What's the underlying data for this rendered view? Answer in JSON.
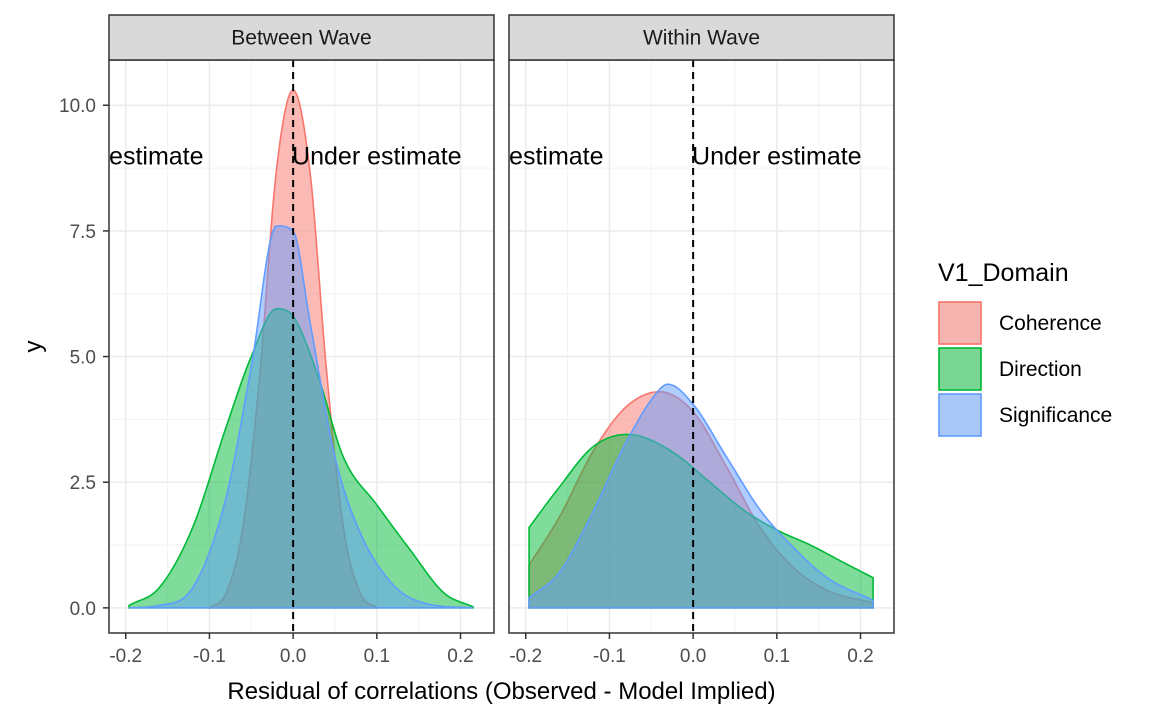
{
  "chart_data": {
    "type": "area",
    "xlabel": "Residual of correlations (Observed - Model Implied)",
    "ylabel": "y",
    "xlim": [
      -0.22,
      0.24
    ],
    "ylim": [
      -0.5,
      10.9
    ],
    "x_ticks": [
      -0.2,
      -0.1,
      0.0,
      0.1,
      0.2
    ],
    "x_tick_labels": [
      "-0.2",
      "-0.1",
      "0.0",
      "0.1",
      "0.2"
    ],
    "y_ticks": [
      0,
      2.5,
      5,
      7.5,
      10
    ],
    "y_tick_labels": [
      "0.0",
      "2.5",
      "5.0",
      "7.5",
      "10.0"
    ],
    "grid": true,
    "legend": {
      "title": "V1_Domain",
      "placement": "right",
      "entries": [
        "Coherence",
        "Direction",
        "Significance"
      ]
    },
    "reference_line": {
      "x": 0,
      "style": "dashed"
    },
    "colors": {
      "Coherence": "#F8766D",
      "Direction": "#00BA38",
      "Significance": "#619CFF"
    },
    "facets": [
      {
        "strip": "Between Wave",
        "annotations": [
          {
            "text": "Over estimate",
            "x": -0.2,
            "y": 9.0
          },
          {
            "text": "Under estimate",
            "x": 0.1,
            "y": 9.0
          }
        ],
        "series": [
          {
            "name": "Coherence",
            "x": [
              -0.1,
              -0.08,
              -0.06,
              -0.04,
              -0.02,
              0,
              0.02,
              0.04,
              0.06,
              0.08,
              0.1
            ],
            "y": [
              0,
              0.3,
              1.6,
              4.6,
              8.7,
              10.3,
              8.7,
              4.7,
              1.6,
              0.3,
              0
            ]
          },
          {
            "name": "Direction",
            "x": [
              -0.196,
              -0.16,
              -0.12,
              -0.08,
              -0.05,
              -0.02,
              0,
              0.03,
              0.06,
              0.1,
              0.14,
              0.18,
              0.215
            ],
            "y": [
              0.05,
              0.4,
              1.6,
              3.6,
              5.0,
              5.95,
              5.8,
              4.6,
              3.0,
              2.05,
              1.15,
              0.3,
              0.02
            ]
          },
          {
            "name": "Significance",
            "x": [
              -0.196,
              -0.16,
              -0.12,
              -0.08,
              -0.05,
              -0.02,
              0,
              0.02,
              0.05,
              0.08,
              0.12,
              0.16,
              0.215
            ],
            "y": [
              0.0,
              0.05,
              0.4,
              2.2,
              4.8,
              7.6,
              7.5,
              5.7,
              3.0,
              1.5,
              0.45,
              0.08,
              0.0
            ]
          }
        ]
      },
      {
        "strip": "Within Wave",
        "annotations": [
          {
            "text": "Over estimate",
            "x": -0.2,
            "y": 9.0
          },
          {
            "text": "Under estimate",
            "x": 0.1,
            "y": 9.0
          }
        ],
        "series": [
          {
            "name": "Coherence",
            "x": [
              -0.196,
              -0.16,
              -0.12,
              -0.08,
              -0.04,
              0,
              0.04,
              0.08,
              0.12,
              0.16,
              0.215
            ],
            "y": [
              0.85,
              1.8,
              3.1,
              4.0,
              4.3,
              3.9,
              2.8,
              1.6,
              0.8,
              0.35,
              0.1
            ]
          },
          {
            "name": "Direction",
            "x": [
              -0.196,
              -0.16,
              -0.12,
              -0.08,
              -0.06,
              -0.02,
              0.02,
              0.06,
              0.1,
              0.14,
              0.18,
              0.215
            ],
            "y": [
              1.6,
              2.4,
              3.2,
              3.45,
              3.4,
              3.05,
              2.5,
              1.95,
              1.55,
              1.25,
              0.9,
              0.6
            ]
          },
          {
            "name": "Significance",
            "x": [
              -0.196,
              -0.16,
              -0.12,
              -0.08,
              -0.04,
              -0.03,
              0,
              0.04,
              0.08,
              0.12,
              0.16,
              0.215
            ],
            "y": [
              0.2,
              0.7,
              1.9,
              3.3,
              4.35,
              4.45,
              4.05,
              3.0,
              1.95,
              1.2,
              0.6,
              0.15
            ]
          }
        ]
      }
    ]
  }
}
